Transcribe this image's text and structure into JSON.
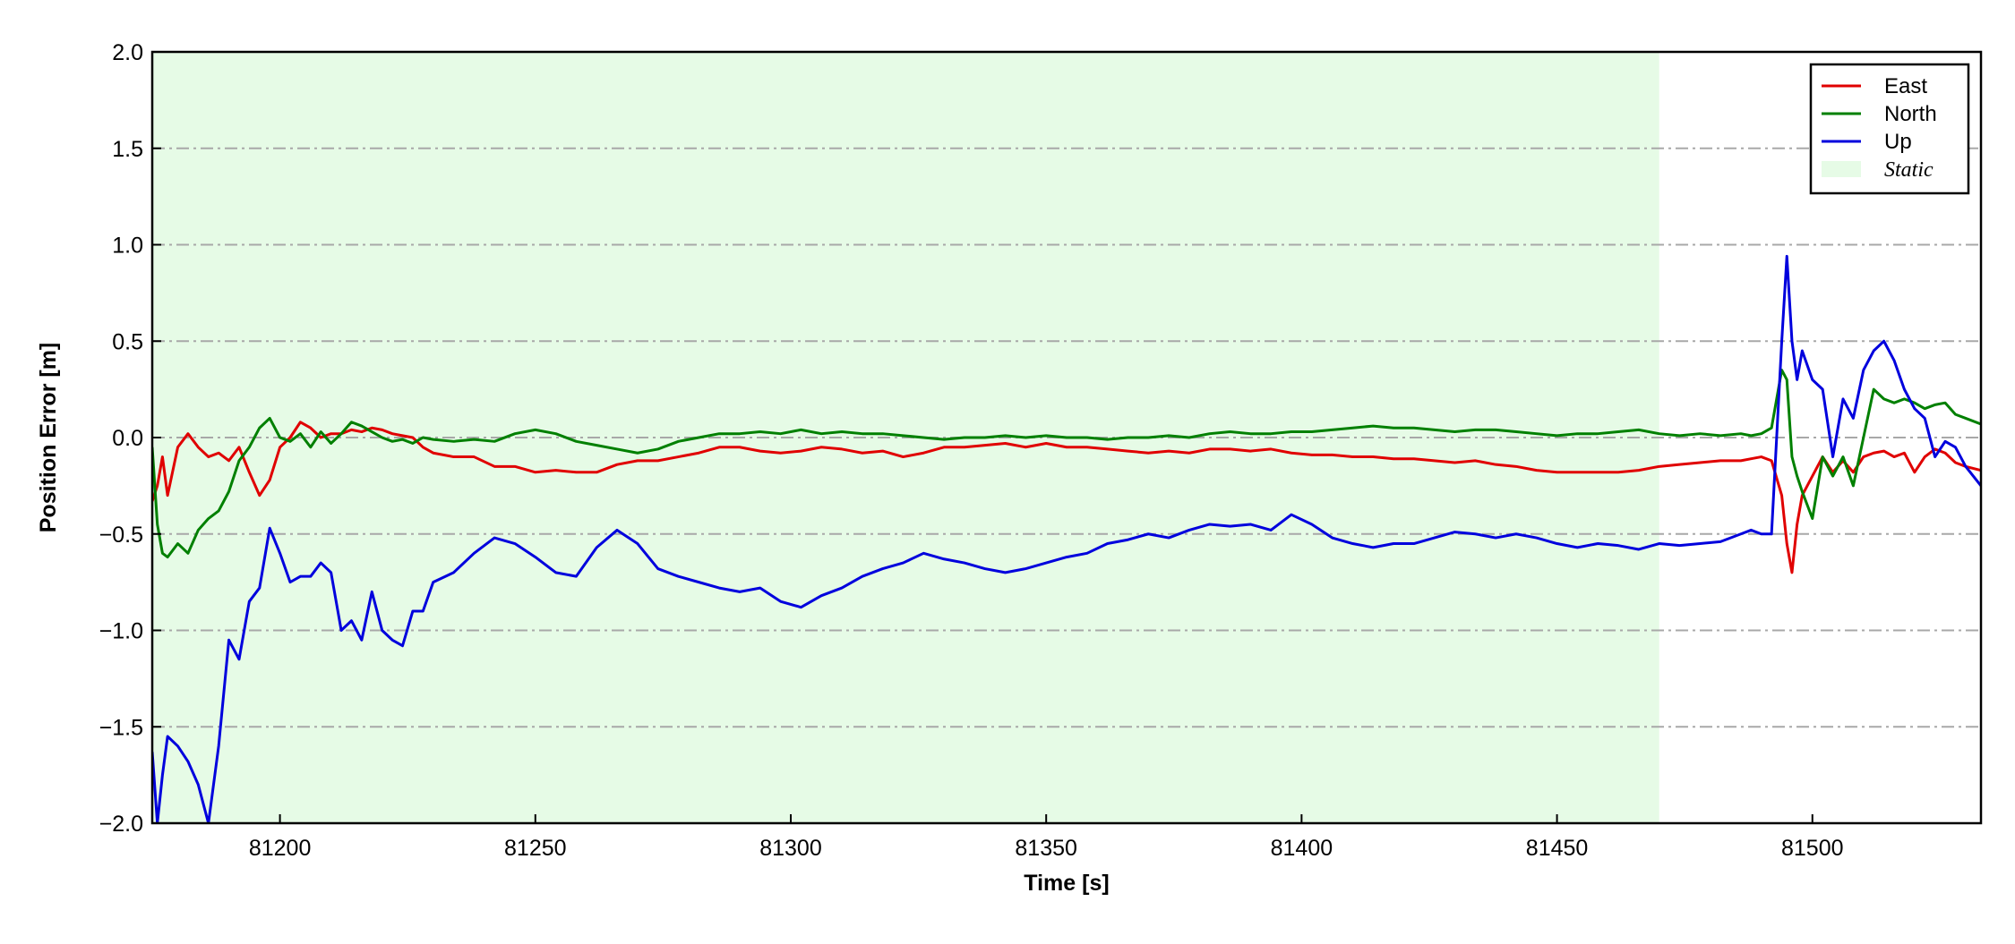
{
  "chart_data": {
    "type": "line",
    "xlabel": "Time [s]",
    "ylabel": "Position Error [m]",
    "xlim": [
      81175,
      81533
    ],
    "ylim": [
      -2,
      2
    ],
    "xticks": [
      81200,
      81250,
      81300,
      81350,
      81400,
      81450,
      81500
    ],
    "yticks": [
      {
        "value": -2,
        "label": "−2.0"
      },
      {
        "value": -1.5,
        "label": "−1.5"
      },
      {
        "value": -1,
        "label": "−1.0"
      },
      {
        "value": -0.5,
        "label": "−0.5"
      },
      {
        "value": 0,
        "label": "0.0"
      },
      0.5,
      {
        "value": 1,
        "label": "1.0"
      },
      1.5,
      {
        "value": 2,
        "label": "2.0"
      }
    ],
    "grid": true,
    "legend": "upper right",
    "shaded_regions": [
      {
        "name": "Static",
        "color": "#e6fbe6",
        "x0": 81175,
        "x1": 81470
      }
    ],
    "x": [
      81175,
      81176,
      81177,
      81178,
      81180,
      81182,
      81184,
      81186,
      81188,
      81190,
      81192,
      81194,
      81196,
      81198,
      81200,
      81202,
      81204,
      81206,
      81208,
      81210,
      81212,
      81214,
      81216,
      81218,
      81220,
      81222,
      81224,
      81226,
      81228,
      81230,
      81234,
      81238,
      81242,
      81246,
      81250,
      81254,
      81258,
      81262,
      81266,
      81270,
      81274,
      81278,
      81282,
      81286,
      81290,
      81294,
      81298,
      81302,
      81306,
      81310,
      81314,
      81318,
      81322,
      81326,
      81330,
      81334,
      81338,
      81342,
      81346,
      81350,
      81354,
      81358,
      81362,
      81366,
      81370,
      81374,
      81378,
      81382,
      81386,
      81390,
      81394,
      81398,
      81402,
      81406,
      81410,
      81414,
      81418,
      81422,
      81426,
      81430,
      81434,
      81438,
      81442,
      81446,
      81450,
      81454,
      81458,
      81462,
      81466,
      81470,
      81474,
      81478,
      81482,
      81486,
      81488,
      81490,
      81492,
      81494,
      81495,
      81496,
      81497,
      81498,
      81500,
      81502,
      81504,
      81506,
      81508,
      81510,
      81512,
      81514,
      81516,
      81518,
      81520,
      81522,
      81524,
      81526,
      81528,
      81530,
      81533
    ],
    "series": [
      {
        "name": "East",
        "color": "#e00000",
        "values": [
          -0.33,
          -0.25,
          -0.1,
          -0.3,
          -0.05,
          0.02,
          -0.05,
          -0.1,
          -0.08,
          -0.12,
          -0.05,
          -0.18,
          -0.3,
          -0.22,
          -0.05,
          0.0,
          0.08,
          0.05,
          0.0,
          0.02,
          0.02,
          0.04,
          0.03,
          0.05,
          0.04,
          0.02,
          0.01,
          0.0,
          -0.05,
          -0.08,
          -0.1,
          -0.1,
          -0.15,
          -0.15,
          -0.18,
          -0.17,
          -0.18,
          -0.18,
          -0.14,
          -0.12,
          -0.12,
          -0.1,
          -0.08,
          -0.05,
          -0.05,
          -0.07,
          -0.08,
          -0.07,
          -0.05,
          -0.06,
          -0.08,
          -0.07,
          -0.1,
          -0.08,
          -0.05,
          -0.05,
          -0.04,
          -0.03,
          -0.05,
          -0.03,
          -0.05,
          -0.05,
          -0.06,
          -0.07,
          -0.08,
          -0.07,
          -0.08,
          -0.06,
          -0.06,
          -0.07,
          -0.06,
          -0.08,
          -0.09,
          -0.09,
          -0.1,
          -0.1,
          -0.11,
          -0.11,
          -0.12,
          -0.13,
          -0.12,
          -0.14,
          -0.15,
          -0.17,
          -0.18,
          -0.18,
          -0.18,
          -0.18,
          -0.17,
          -0.15,
          -0.14,
          -0.13,
          -0.12,
          -0.12,
          -0.11,
          -0.1,
          -0.12,
          -0.3,
          -0.55,
          -0.7,
          -0.45,
          -0.3,
          -0.2,
          -0.1,
          -0.18,
          -0.12,
          -0.18,
          -0.1,
          -0.08,
          -0.07,
          -0.1,
          -0.08,
          -0.18,
          -0.1,
          -0.06,
          -0.08,
          -0.13,
          -0.15,
          -0.17
        ]
      },
      {
        "name": "North",
        "color": "#008000",
        "values": [
          -0.05,
          -0.45,
          -0.6,
          -0.62,
          -0.55,
          -0.6,
          -0.48,
          -0.42,
          -0.38,
          -0.28,
          -0.12,
          -0.05,
          0.05,
          0.1,
          0.0,
          -0.02,
          0.02,
          -0.05,
          0.03,
          -0.03,
          0.02,
          0.08,
          0.06,
          0.03,
          0.0,
          -0.02,
          -0.01,
          -0.03,
          0.0,
          -0.01,
          -0.02,
          -0.01,
          -0.02,
          0.02,
          0.04,
          0.02,
          -0.02,
          -0.04,
          -0.06,
          -0.08,
          -0.06,
          -0.02,
          0.0,
          0.02,
          0.02,
          0.03,
          0.02,
          0.04,
          0.02,
          0.03,
          0.02,
          0.02,
          0.01,
          0.0,
          -0.01,
          0.0,
          0.0,
          0.01,
          0.0,
          0.01,
          0.0,
          0.0,
          -0.01,
          0.0,
          0.0,
          0.01,
          0.0,
          0.02,
          0.03,
          0.02,
          0.02,
          0.03,
          0.03,
          0.04,
          0.05,
          0.06,
          0.05,
          0.05,
          0.04,
          0.03,
          0.04,
          0.04,
          0.03,
          0.02,
          0.01,
          0.02,
          0.02,
          0.03,
          0.04,
          0.02,
          0.01,
          0.02,
          0.01,
          0.02,
          0.01,
          0.02,
          0.05,
          0.35,
          0.3,
          -0.1,
          -0.2,
          -0.28,
          -0.42,
          -0.1,
          -0.2,
          -0.1,
          -0.25,
          0.0,
          0.25,
          0.2,
          0.18,
          0.2,
          0.18,
          0.15,
          0.17,
          0.18,
          0.12,
          0.1,
          0.07
        ]
      },
      {
        "name": "Up",
        "color": "#0000dd",
        "values": [
          -1.63,
          -2.0,
          -1.75,
          -1.55,
          -1.6,
          -1.68,
          -1.8,
          -2.0,
          -1.6,
          -1.05,
          -1.15,
          -0.85,
          -0.78,
          -0.47,
          -0.6,
          -0.75,
          -0.72,
          -0.72,
          -0.65,
          -0.7,
          -1.0,
          -0.95,
          -1.05,
          -0.8,
          -1.0,
          -1.05,
          -1.08,
          -0.9,
          -0.9,
          -0.75,
          -0.7,
          -0.6,
          -0.52,
          -0.55,
          -0.62,
          -0.7,
          -0.72,
          -0.57,
          -0.48,
          -0.55,
          -0.68,
          -0.72,
          -0.75,
          -0.78,
          -0.8,
          -0.78,
          -0.85,
          -0.88,
          -0.82,
          -0.78,
          -0.72,
          -0.68,
          -0.65,
          -0.6,
          -0.63,
          -0.65,
          -0.68,
          -0.7,
          -0.68,
          -0.65,
          -0.62,
          -0.6,
          -0.55,
          -0.53,
          -0.5,
          -0.52,
          -0.48,
          -0.45,
          -0.46,
          -0.45,
          -0.48,
          -0.4,
          -0.45,
          -0.52,
          -0.55,
          -0.57,
          -0.55,
          -0.55,
          -0.52,
          -0.49,
          -0.5,
          -0.52,
          -0.5,
          -0.52,
          -0.55,
          -0.57,
          -0.55,
          -0.56,
          -0.58,
          -0.55,
          -0.56,
          -0.55,
          -0.54,
          -0.5,
          -0.48,
          -0.5,
          -0.5,
          0.5,
          0.94,
          0.5,
          0.3,
          0.45,
          0.3,
          0.25,
          -0.1,
          0.2,
          0.1,
          0.35,
          0.45,
          0.5,
          0.4,
          0.25,
          0.15,
          0.1,
          -0.1,
          -0.02,
          -0.05,
          -0.15,
          -0.25
        ]
      }
    ]
  }
}
